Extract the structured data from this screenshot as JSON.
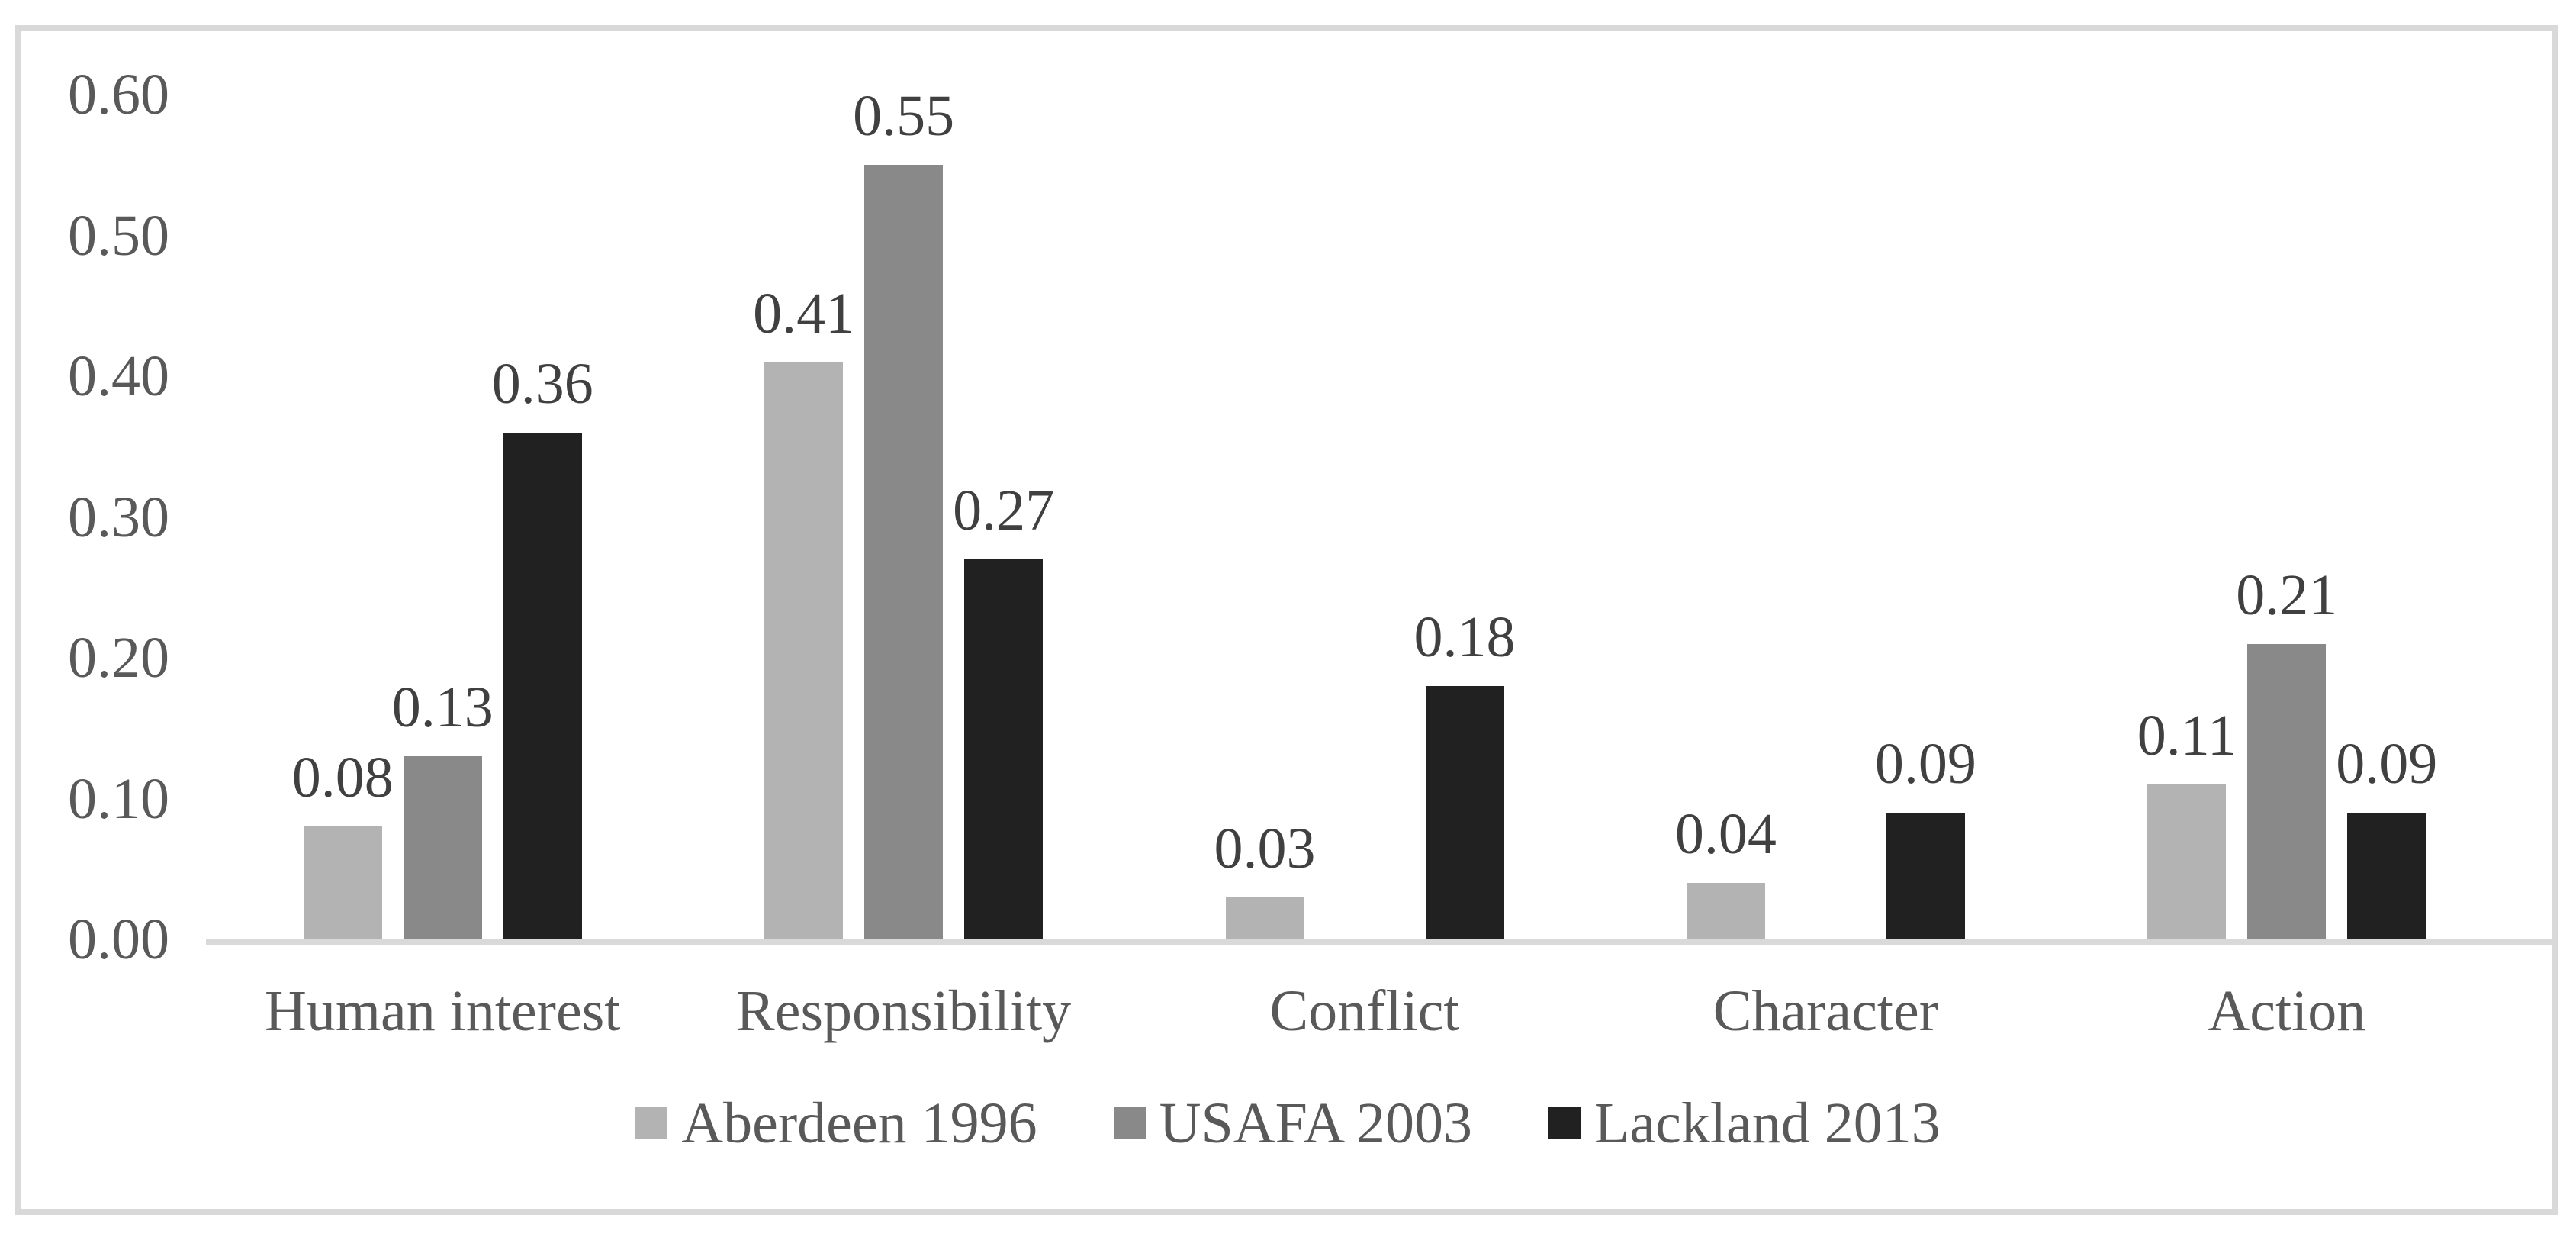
{
  "chart_data": {
    "type": "bar",
    "title": "",
    "xlabel": "",
    "ylabel": "",
    "categories": [
      "Human interest",
      "Responsibility",
      "Conflict",
      "Character",
      "Action"
    ],
    "series": [
      {
        "name": "Aberdeen 1996",
        "color": "#b3b3b3",
        "values": [
          0.08,
          0.41,
          0.03,
          0.04,
          0.11
        ]
      },
      {
        "name": "USAFA 2003",
        "color": "#898989",
        "values": [
          0.13,
          0.55,
          0.0,
          0.0,
          0.21
        ]
      },
      {
        "name": "Lackland 2013",
        "color": "#212121",
        "values": [
          0.36,
          0.27,
          0.18,
          0.09,
          0.09
        ]
      }
    ],
    "value_labels": [
      "0.08",
      "0.41",
      "0.03",
      "0.04",
      "0.11",
      "0.13",
      "0.55",
      "0.21",
      "0.36",
      "0.27",
      "0.18",
      "0.09",
      "0.09"
    ],
    "value_label_format": "0.00",
    "hidden_zero_bars": true,
    "y_axis": {
      "min": 0.0,
      "max": 0.6,
      "step": 0.1,
      "tick_labels": [
        "0.00",
        "0.10",
        "0.20",
        "0.30",
        "0.40",
        "0.50",
        "0.60"
      ]
    },
    "grid": false,
    "legend_position": "bottom",
    "colors": {
      "frame_border": "#d9d9d9",
      "axis_line": "#d9d9d9",
      "tick_label_text": "#595959",
      "category_label_text": "#595959",
      "value_label_text": "#404040",
      "legend_text": "#595959",
      "background": "#ffffff"
    }
  }
}
